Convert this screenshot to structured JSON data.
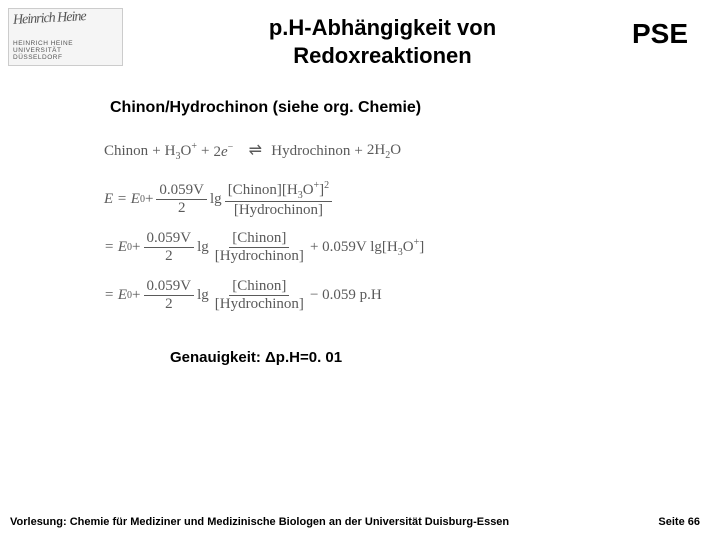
{
  "logo": {
    "signature": "Heinrich Heine",
    "line1": "HEINRICH HEINE",
    "line2": "UNIVERSITÄT",
    "line3": "DÜSSELDORF"
  },
  "title": {
    "line1": "p.H-Abhängigkeit von",
    "line2": "Redoxreaktionen"
  },
  "pse": "PSE",
  "subheading": "Chinon/Hydrochinon (siehe org. Chemie)",
  "reaction": {
    "left1": "Chinon",
    "plus1": "+",
    "left2": "H",
    "left2_sub": "3",
    "left2b": "O",
    "left2_sup": "+",
    "plus2": "+",
    "left3a": "2",
    "left3b": "e",
    "left3_sup": "−",
    "right1": "Hydrochinon",
    "plus3": "+",
    "right2a": "2",
    "right2b": "H",
    "right2_sub": "2",
    "right2c": "O"
  },
  "eq2": {
    "lhs": "E = E",
    "sup0": "0",
    "plus": " + ",
    "coef_num": "0.059V",
    "coef_den": "2",
    "lg": " lg ",
    "num_a": "[Chinon][H",
    "num_sub": "3",
    "num_b": "O",
    "num_sup1": "+",
    "num_c": "]",
    "num_sup2": "2",
    "den": "[Hydrochinon]"
  },
  "eq3": {
    "lhs": "= E",
    "sup0": "0",
    "plus": " + ",
    "coef_num": "0.059V",
    "coef_den": "2",
    "lg": " lg ",
    "num": "[Chinon]",
    "den": "[Hydrochinon]",
    "tail_a": " + 0.059V lg[H",
    "tail_sub": "3",
    "tail_b": "O",
    "tail_sup": "+",
    "tail_c": "]"
  },
  "eq4": {
    "lhs": "= E",
    "sup0": "0",
    "plus": " + ",
    "coef_num": "0.059V",
    "coef_den": "2",
    "lg": " lg ",
    "num": "[Chinon]",
    "den": "[Hydrochinon]",
    "tail": " − 0.059 p.H"
  },
  "accuracy": "Genauigkeit: Δp.H=0. 01",
  "footer": {
    "left": "Vorlesung:  Chemie für Mediziner und Medizinische Biologen an der Universität Duisburg-Essen",
    "right": "Seite  66"
  },
  "colors": {
    "text": "#000000",
    "equation_text": "#5a5a5a",
    "background": "#ffffff"
  }
}
